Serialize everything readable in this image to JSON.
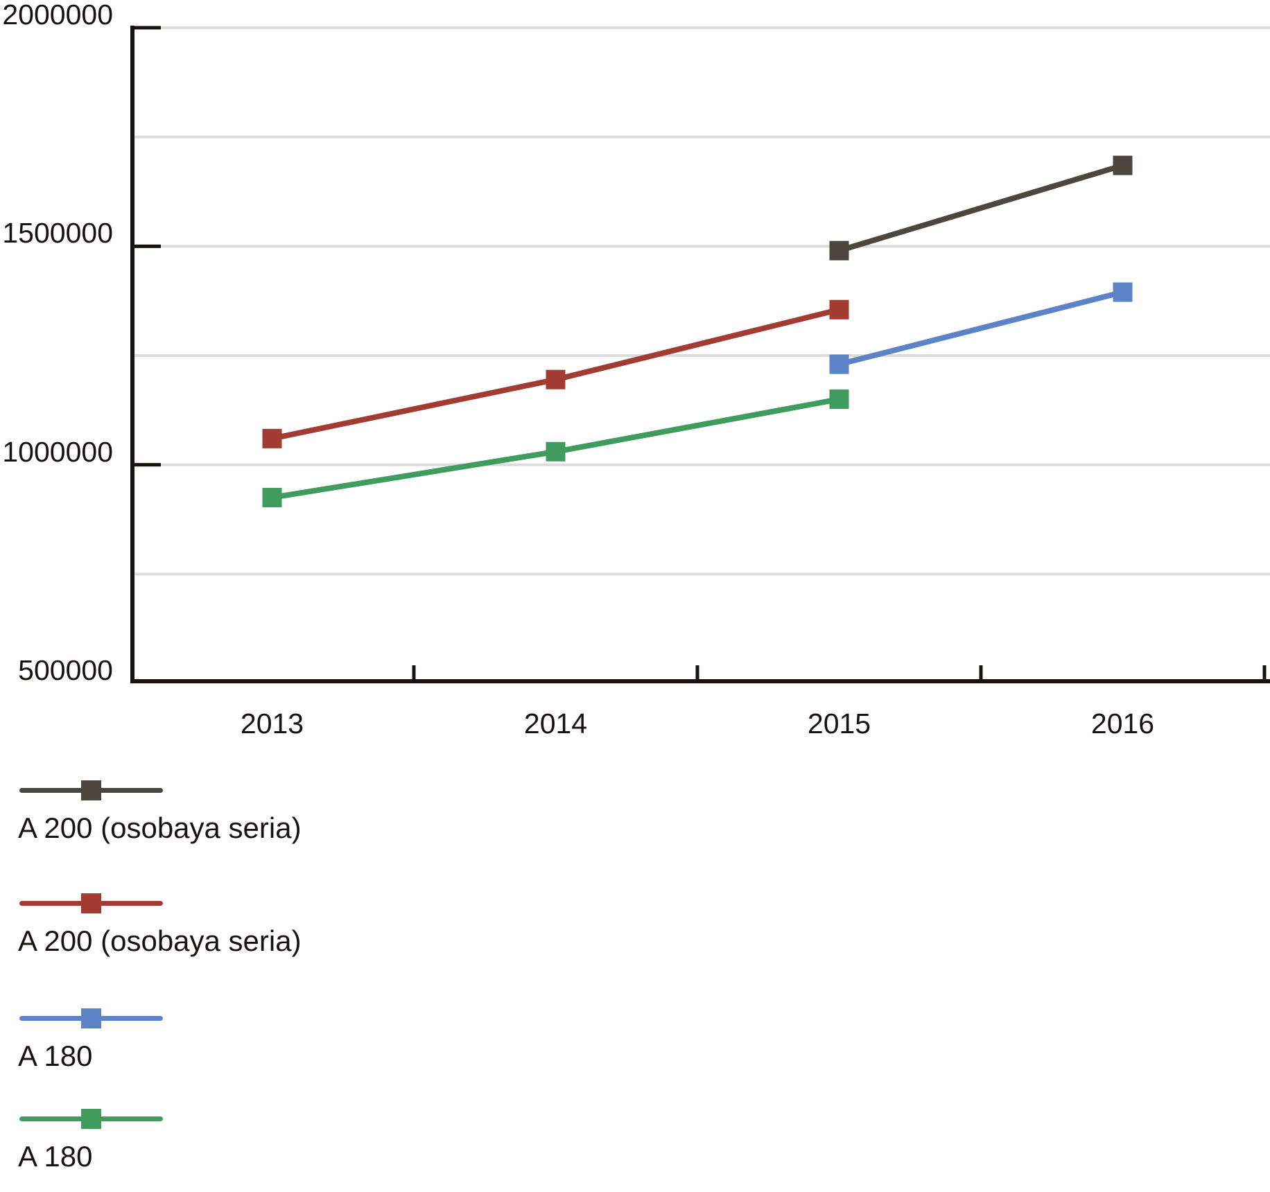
{
  "page": {
    "background": "#ffffff",
    "title": ""
  },
  "chart_data": {
    "type": "line",
    "title": "",
    "xlabel": "",
    "ylabel": "",
    "categories": [
      "2013",
      "2014",
      "2015",
      "2016"
    ],
    "series": [
      {
        "name": "A 200 (osobaya seria)",
        "color": "#4d463e",
        "marker": "square",
        "values": [
          null,
          null,
          1490000,
          1685000
        ]
      },
      {
        "name": "A 200 (osobaya seria)",
        "color": "#a23b32",
        "marker": "square",
        "values": [
          1060000,
          1195000,
          1355000,
          null
        ]
      },
      {
        "name": "A 180",
        "color": "#5b83c5",
        "marker": "square",
        "values": [
          null,
          null,
          1230000,
          1395000
        ]
      },
      {
        "name": "A 180",
        "color": "#3f9c5e",
        "marker": "square",
        "values": [
          925000,
          1030000,
          1150000,
          null
        ]
      }
    ],
    "ylim": [
      500000,
      2000000
    ],
    "y_labeled_ticks": [
      500000,
      1000000,
      1500000,
      2000000
    ],
    "y_tick_labels": [
      "500000",
      "1000000",
      "1500000",
      "2000000"
    ],
    "y_gridline_step": 250000,
    "grid": true,
    "legend_position": "bottom-left",
    "legend": [
      "A 200 (osobaya seria)",
      "A 200 (osobaya seria)",
      "A 180",
      "A 180"
    ],
    "axis_color": "#19130f",
    "grid_color": "#dcdcdc",
    "text_color": "#19130f"
  }
}
